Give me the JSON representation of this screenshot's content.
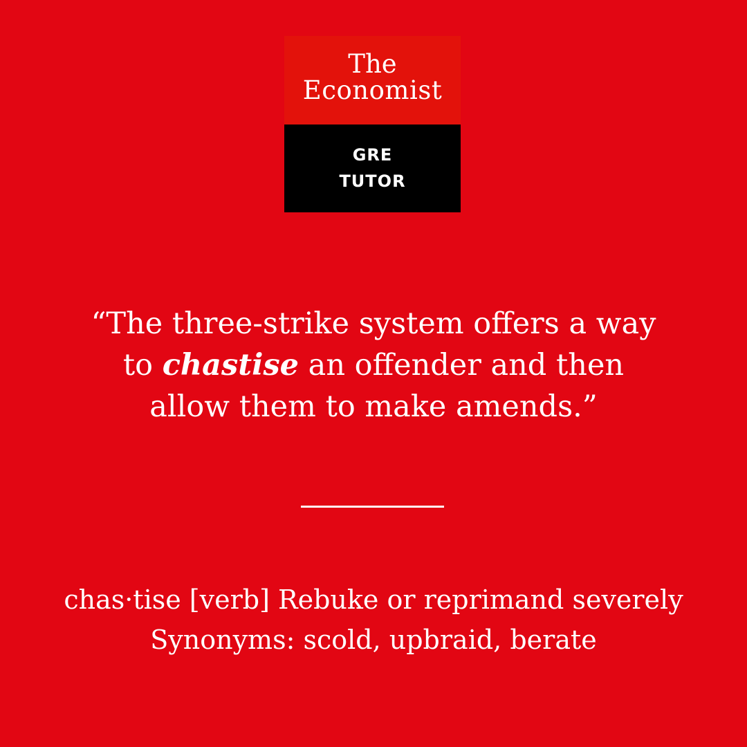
{
  "logo": {
    "line1": "The",
    "line2": "Economist",
    "badge_line1": "GRE",
    "badge_line2": "TUTOR"
  },
  "quote": {
    "line1": "“The three-strike system offers a way",
    "line2_before": "to ",
    "line2_word": "chastise",
    "line2_after": " an offender and then",
    "line3": "allow them to make amends.”"
  },
  "definition": {
    "line1": "chas·tise [verb] Rebuke or reprimand severely",
    "line2": "Synonyms: scold, upbraid, berate"
  },
  "colors": {
    "background": "#e20613",
    "logo_red": "#e3120b",
    "logo_black": "#000000",
    "text": "#ffffff"
  }
}
